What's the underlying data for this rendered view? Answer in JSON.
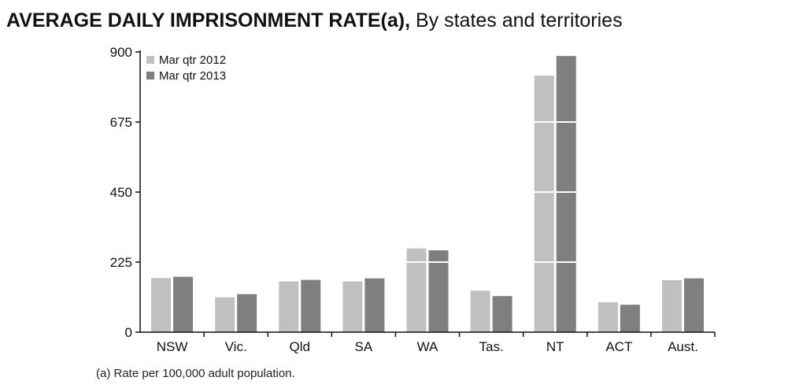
{
  "header": {
    "title_bold": "AVERAGE DAILY IMPRISONMENT RATE(a),",
    "title_rest": "By states and territories"
  },
  "footnote": "(a) Rate per 100,000 adult population.",
  "chart_data": {
    "type": "bar",
    "title": "AVERAGE DAILY IMPRISONMENT RATE(a), By states and territories",
    "xlabel": "",
    "ylabel": "",
    "categories": [
      "NSW",
      "Vic.",
      "Qld",
      "SA",
      "WA",
      "Tas.",
      "NT",
      "ACT",
      "Aust."
    ],
    "series": [
      {
        "name": "Mar qtr 2012",
        "color": "#c0c0c0",
        "values": [
          174,
          112,
          163,
          163,
          269,
          133,
          824,
          96,
          167
        ]
      },
      {
        "name": "Mar qtr 2013",
        "color": "#7f7f7f",
        "values": [
          178,
          122,
          168,
          173,
          263,
          116,
          887,
          88,
          173
        ]
      }
    ],
    "yticks": [
      0,
      225,
      450,
      675,
      900
    ],
    "ylim": [
      0,
      900
    ],
    "legend_position": "top-left",
    "grid": false,
    "white_bands": [
      225,
      450,
      675
    ]
  }
}
